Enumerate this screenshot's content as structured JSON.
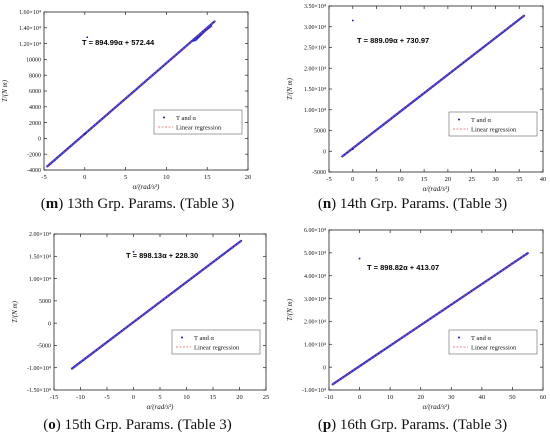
{
  "colors": {
    "data_series": "#2a2ad8",
    "regression": "#e06060",
    "axis": "#222222",
    "text": "#111111",
    "marker": "#1010c0"
  },
  "chart_data": [
    {
      "type": "line",
      "panel_letter": "m",
      "caption_text": " 13th Grp. Params. (Table 3)",
      "equation": "T = 894.99α + 572.44",
      "xlabel": "α/(rad/s²)",
      "ylabel": "T/(N m)",
      "xlim": [
        -5,
        20
      ],
      "ylim": [
        -4000,
        16000
      ],
      "xticks": [
        -5,
        0,
        5,
        10,
        15,
        20
      ],
      "xtick_labels": [
        "-5",
        "0",
        "5",
        "10",
        "15",
        "20"
      ],
      "yticks": [
        -4000,
        -2000,
        0,
        2000,
        4000,
        6000,
        8000,
        10000,
        12000,
        14000,
        16000
      ],
      "ytick_labels": [
        "-4000",
        "-2000",
        "0",
        "2000",
        "4000",
        "6000",
        "8000",
        "10000",
        "1.20×10⁴",
        "1.40×10⁴",
        "1.60×10⁴"
      ],
      "legend": [
        "T and α",
        "Linear regression"
      ],
      "legend_position": "right",
      "grid": false,
      "series": [
        {
          "name": "T and α",
          "style": "points",
          "x": [
            -4.6,
            15.9
          ],
          "y": [
            -3540,
            14800
          ]
        },
        {
          "name": "Linear regression",
          "style": "dashed",
          "x": [
            -4.6,
            15.9
          ],
          "y": [
            -3545,
            14803
          ]
        }
      ],
      "outliers": [
        {
          "x": 0,
          "y": 600
        },
        {
          "x": 0.3,
          "y": 12800
        }
      ],
      "loop": {
        "x": [
          13.2,
          15.6,
          15.0,
          13.6,
          13.2
        ],
        "y": [
          12300,
          14250,
          13800,
          12400,
          12300
        ]
      }
    },
    {
      "type": "line",
      "panel_letter": "n",
      "caption_text": " 14th Grp. Params. (Table 3)",
      "equation": "T = 889.09α + 730.97",
      "xlabel": "α/(rad/s²)",
      "ylabel": "T/(N m)",
      "xlim": [
        -5,
        40
      ],
      "ylim": [
        -5000,
        35000
      ],
      "xticks": [
        -5,
        0,
        5,
        10,
        15,
        20,
        25,
        30,
        35,
        40
      ],
      "xtick_labels": [
        "-5",
        "0",
        "5",
        "10",
        "15",
        "20",
        "25",
        "30",
        "35",
        "40"
      ],
      "yticks": [
        -5000,
        0,
        5000,
        10000,
        15000,
        20000,
        25000,
        30000,
        35000
      ],
      "ytick_labels": [
        "-5000",
        "0",
        "5000",
        "1.00×10⁴",
        "1.50×10⁴",
        "2.00×10⁴",
        "2.50×10⁴",
        "3.00×10⁴",
        "3.50×10⁴"
      ],
      "legend": [
        "T and α",
        "Linear regression"
      ],
      "legend_position": "right",
      "grid": false,
      "series": [
        {
          "name": "T and α",
          "style": "points",
          "x": [
            -2.2,
            36.0
          ],
          "y": [
            -1230,
            32640
          ]
        },
        {
          "name": "Linear regression",
          "style": "dashed",
          "x": [
            -2.2,
            36.0
          ],
          "y": [
            -1225,
            32738
          ]
        }
      ],
      "outliers": [
        {
          "x": 0,
          "y": 31500
        },
        {
          "x": 0,
          "y": 500
        }
      ]
    },
    {
      "type": "line",
      "panel_letter": "o",
      "caption_text": " 15th Grp. Params. (Table 3)",
      "equation": "T = 898.13α + 228.30",
      "xlabel": "α/(rad/s²)",
      "ylabel": "T/(N m)",
      "xlim": [
        -15,
        25
      ],
      "ylim": [
        -15000,
        20000
      ],
      "xticks": [
        -15,
        -10,
        -5,
        0,
        5,
        10,
        15,
        20,
        25
      ],
      "xtick_labels": [
        "-15",
        "-10",
        "-5",
        "0",
        "5",
        "10",
        "15",
        "20",
        "25"
      ],
      "yticks": [
        -15000,
        -10000,
        -5000,
        0,
        5000,
        10000,
        15000,
        20000
      ],
      "ytick_labels": [
        "-1.50×10⁴",
        "-1.00×10⁴",
        "-5000",
        "0",
        "5000",
        "1.00×10⁴",
        "1.50×10⁴",
        "2.00×10⁴"
      ],
      "legend": [
        "T and α",
        "Linear regression"
      ],
      "legend_position": "right",
      "grid": false,
      "series": [
        {
          "name": "T and α",
          "style": "points",
          "x": [
            -11.6,
            20.3
          ],
          "y": [
            -10190,
            18460
          ]
        },
        {
          "name": "Linear regression",
          "style": "dashed",
          "x": [
            -11.6,
            20.3
          ],
          "y": [
            -10190,
            18460
          ]
        }
      ],
      "outliers": [
        {
          "x": 0,
          "y": 16000
        }
      ]
    },
    {
      "type": "line",
      "panel_letter": "p",
      "caption_text": " 16th Grp. Params. (Table 3)",
      "equation": "T = 898.82α + 413.07",
      "xlabel": "α/(rad/s²)",
      "ylabel": "T/(N m)",
      "xlim": [
        -10,
        60
      ],
      "ylim": [
        -10000,
        60000
      ],
      "xticks": [
        -10,
        0,
        10,
        20,
        30,
        40,
        50,
        60
      ],
      "xtick_labels": [
        "-10",
        "0",
        "10",
        "20",
        "30",
        "40",
        "50",
        "60"
      ],
      "yticks": [
        -10000,
        0,
        10000,
        20000,
        30000,
        40000,
        50000,
        60000
      ],
      "ytick_labels": [
        "-1.00×10⁴",
        "0",
        "1.00×10⁴",
        "2.00×10⁴",
        "3.00×10⁴",
        "4.00×10⁴",
        "5.00×10⁴",
        "6.00×10⁴"
      ],
      "legend": [
        "T and α",
        "Linear regression"
      ],
      "legend_position": "right",
      "grid": false,
      "series": [
        {
          "name": "T and α",
          "style": "points",
          "x": [
            -8.8,
            55.0
          ],
          "y": [
            -7500,
            49850
          ]
        },
        {
          "name": "Linear regression",
          "style": "dashed",
          "x": [
            -8.8,
            55.0
          ],
          "y": [
            -7496,
            49848
          ]
        }
      ],
      "outliers": [
        {
          "x": 0,
          "y": 47500
        }
      ]
    }
  ]
}
